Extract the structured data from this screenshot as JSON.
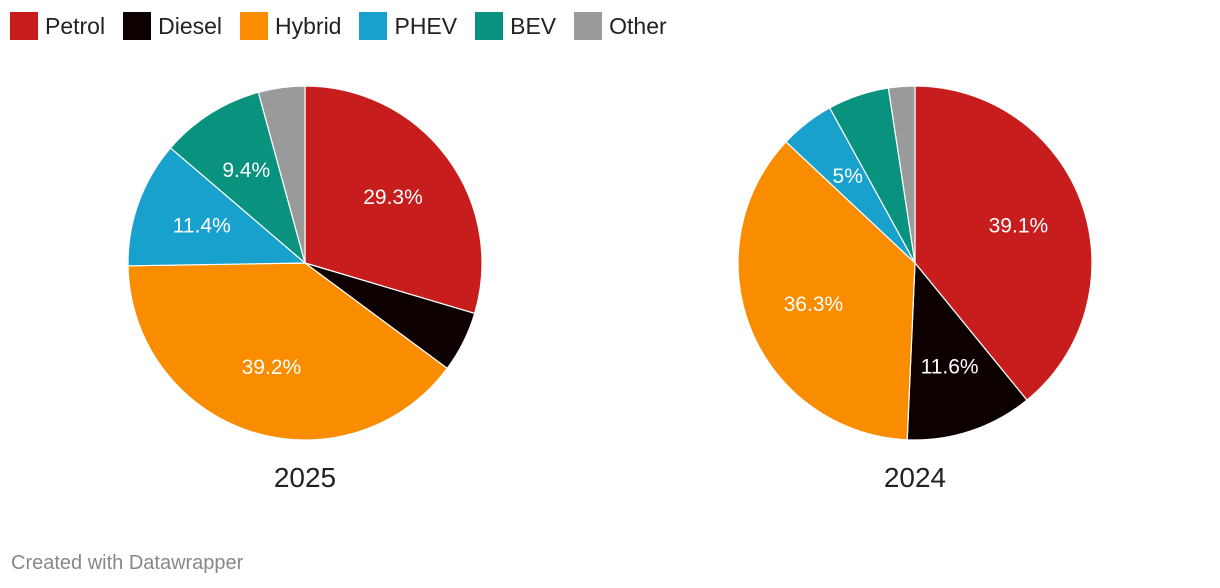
{
  "legend": [
    {
      "label": "Petrol",
      "color": "#c71e1d"
    },
    {
      "label": "Diesel",
      "color": "#0d0000"
    },
    {
      "label": "Hybrid",
      "color": "#fa8c00"
    },
    {
      "label": "PHEV",
      "color": "#18a1cd"
    },
    {
      "label": "BEV",
      "color": "#09937e"
    },
    {
      "label": "Other",
      "color": "#9a9a9a"
    }
  ],
  "chart_data": [
    {
      "type": "pie",
      "title": "2025",
      "slices": [
        {
          "label": "Petrol",
          "value": 29.3,
          "display": "29.3%",
          "color": "#c71e1d"
        },
        {
          "label": "Diesel",
          "value": 5.5,
          "display": "",
          "color": "#0d0000"
        },
        {
          "label": "Hybrid",
          "value": 39.2,
          "display": "39.2%",
          "color": "#fa8c00"
        },
        {
          "label": "PHEV",
          "value": 11.4,
          "display": "11.4%",
          "color": "#18a1cd"
        },
        {
          "label": "BEV",
          "value": 9.4,
          "display": "9.4%",
          "color": "#09937e"
        },
        {
          "label": "Other",
          "value": 4.2,
          "display": "",
          "color": "#9a9a9a"
        }
      ]
    },
    {
      "type": "pie",
      "title": "2024",
      "slices": [
        {
          "label": "Petrol",
          "value": 39.1,
          "display": "39.1%",
          "color": "#c71e1d"
        },
        {
          "label": "Diesel",
          "value": 11.6,
          "display": "11.6%",
          "color": "#0d0000"
        },
        {
          "label": "Hybrid",
          "value": 36.3,
          "display": "36.3%",
          "color": "#fa8c00"
        },
        {
          "label": "PHEV",
          "value": 5.0,
          "display": "5%",
          "color": "#18a1cd"
        },
        {
          "label": "BEV",
          "value": 5.6,
          "display": "",
          "color": "#09937e"
        },
        {
          "label": "Other",
          "value": 2.4,
          "display": "",
          "color": "#9a9a9a"
        }
      ]
    }
  ],
  "footer": "Created with Datawrapper"
}
